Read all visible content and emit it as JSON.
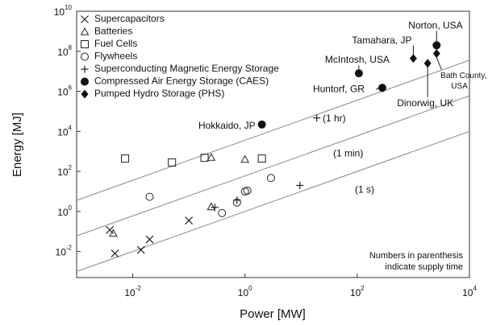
{
  "chart_data": {
    "type": "scatter",
    "xlabel": "Power [MW]",
    "ylabel": "Energy [MJ]",
    "xscale": "log",
    "yscale": "log",
    "xlim": [
      0.001,
      10000
    ],
    "ylim": [
      0.0005,
      10000000000
    ],
    "xticks": [
      {
        "value": 0.01,
        "label": "10",
        "exponent": "-2"
      },
      {
        "value": 1,
        "label": "10",
        "exponent": "0"
      },
      {
        "value": 100,
        "label": "10",
        "exponent": "2"
      },
      {
        "value": 10000,
        "label": "10",
        "exponent": "4"
      }
    ],
    "yticks": [
      {
        "value": 0.01,
        "label": "10",
        "exponent": "-2"
      },
      {
        "value": 1,
        "label": "10",
        "exponent": "0"
      },
      {
        "value": 100,
        "label": "10",
        "exponent": "2"
      },
      {
        "value": 10000,
        "label": "10",
        "exponent": "4"
      },
      {
        "value": 1000000,
        "label": "10",
        "exponent": "6"
      },
      {
        "value": 100000000,
        "label": "10",
        "exponent": "8"
      },
      {
        "value": 10000000000,
        "label": "10",
        "exponent": "10"
      }
    ],
    "legend": "upper left",
    "series": [
      {
        "name": "Supercapacitors",
        "marker": "x",
        "color": "#222",
        "x": [
          0.0039,
          0.0048,
          0.014,
          0.02,
          0.1
        ],
        "values": [
          0.12,
          0.008,
          0.012,
          0.04,
          0.35
        ]
      },
      {
        "name": "Batteries",
        "marker": "triangle",
        "color": "#222",
        "x": [
          0.0045,
          0.25,
          0.25,
          1
        ],
        "values": [
          0.08,
          500,
          1.7,
          400
        ]
      },
      {
        "name": "Fuel Cells",
        "marker": "square",
        "color": "#222",
        "x": [
          0.0073,
          0.05,
          0.19,
          2
        ],
        "values": [
          440,
          280,
          480,
          440
        ]
      },
      {
        "name": "Flywheels",
        "marker": "circle",
        "color": "#222",
        "x": [
          0.02,
          0.39,
          0.72,
          1,
          1.1,
          2.9
        ],
        "values": [
          5.4,
          0.83,
          2.8,
          10,
          11,
          47
        ]
      },
      {
        "name": "Superconducting Magnetic Energy Storage",
        "marker": "plus",
        "color": "#222",
        "x": [
          0.29,
          0.72,
          9.5,
          19
        ],
        "values": [
          1.6,
          3.7,
          20,
          47000
        ]
      },
      {
        "name": "Compressed Air Energy Storage (CAES)",
        "marker": "filled-circle",
        "color": "#111",
        "x": [
          2,
          107,
          280,
          2600
        ],
        "values": [
          22000,
          8000000,
          1500000,
          200000000
        ],
        "labels": [
          "Hokkaido, JP",
          "McIntosh, USA",
          "Huntorf, GR",
          "Norton, USA"
        ]
      },
      {
        "name": "Pumped Hydro Storage (PHS)",
        "marker": "diamond",
        "color": "#111",
        "x": [
          1000,
          1800,
          2600
        ],
        "values": [
          44000000,
          25000000,
          78000000
        ],
        "labels": [
          "Tamahara, JP",
          "Dinorwig, UK",
          [
            "Bath County,",
            "USA"
          ]
        ]
      }
    ],
    "reference_lines": [
      {
        "label": "(1 hr)",
        "factor": 3600
      },
      {
        "label": "(1 min)",
        "factor": 60
      },
      {
        "label": "(1 s)",
        "factor": 1
      }
    ],
    "note": [
      "Numbers in parenthesis",
      "indicate supply time"
    ]
  }
}
